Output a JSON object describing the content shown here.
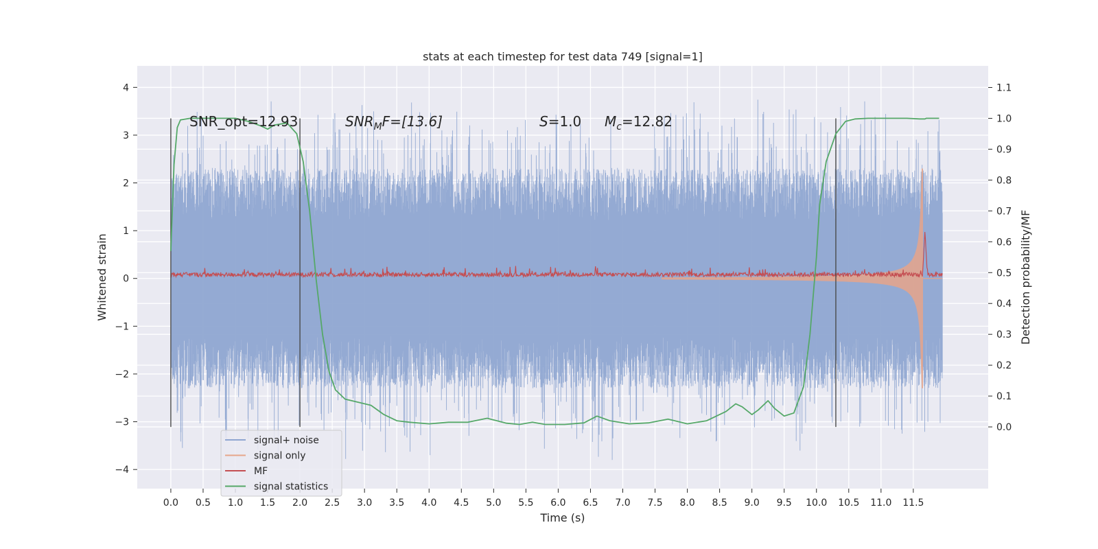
{
  "chart_data": {
    "type": "line",
    "title": "stats at each timestep for test data 749 [signal=1]",
    "xlabel": "Time (s)",
    "ylabel": "Whitened strain",
    "y2label": "Detection probability/MF",
    "xlim": [
      -0.52,
      12.66
    ],
    "ylim": [
      -4.4,
      4.45
    ],
    "y2lim": [
      -0.2,
      1.17
    ],
    "x_ticks": [
      "0.0",
      "0.5",
      "1.0",
      "1.5",
      "2.0",
      "2.5",
      "3.0",
      "3.5",
      "4.0",
      "4.5",
      "5.0",
      "5.5",
      "6.0",
      "6.5",
      "7.0",
      "7.5",
      "8.0",
      "8.5",
      "9.0",
      "9.5",
      "10.0",
      "10.5",
      "11.0",
      "11.5"
    ],
    "y_ticks": [
      "4",
      "3",
      "2",
      "1",
      "0",
      "−1",
      "−2",
      "−3",
      "−4"
    ],
    "y2_ticks": [
      "1.1",
      "1.0",
      "0.9",
      "0.8",
      "0.7",
      "0.6",
      "0.5",
      "0.4",
      "0.3",
      "0.2",
      "0.1",
      "0.0"
    ],
    "grid": true,
    "legend_position": "lower-left",
    "annotations": {
      "snr_opt": "SNR_opt=12.93",
      "snr_mf_name": "SNR",
      "snr_mf_sub": "M",
      "snr_mf_rest": "F=[13.6]",
      "s_name": "S",
      "s_rest": "=1.0",
      "mc_name": "M",
      "mc_sub": "c",
      "mc_rest": "=12.82"
    },
    "vlines_x": [
      0.0,
      2.0,
      10.3
    ],
    "series": [
      {
        "name": "signal+ noise",
        "color": "#8fa6d1",
        "axis": "left",
        "description_range": [
          -3.8,
          4.1
        ]
      },
      {
        "name": "signal only",
        "color": "#e6a58a",
        "axis": "left",
        "peak_time": 11.65,
        "peak_amplitude": 2.3
      },
      {
        "name": "MF",
        "color": "#c44e52",
        "axis": "left",
        "level": 0.08,
        "peak_time": 11.68,
        "peak_value": 1.0
      },
      {
        "name": "signal statistics",
        "color": "#55a868",
        "axis": "right",
        "x": [
          0.0,
          0.05,
          0.1,
          0.15,
          0.3,
          0.6,
          1.0,
          1.2,
          1.4,
          1.5,
          1.6,
          1.8,
          1.95,
          2.05,
          2.15,
          2.25,
          2.35,
          2.45,
          2.55,
          2.7,
          2.9,
          3.1,
          3.3,
          3.5,
          3.7,
          4.0,
          4.3,
          4.6,
          4.9,
          5.2,
          5.4,
          5.6,
          5.8,
          6.1,
          6.4,
          6.6,
          6.8,
          7.1,
          7.4,
          7.7,
          8.0,
          8.3,
          8.6,
          8.75,
          8.85,
          9.0,
          9.1,
          9.25,
          9.35,
          9.5,
          9.65,
          9.8,
          9.9,
          10.0,
          10.05,
          10.15,
          10.3,
          10.45,
          10.6,
          10.8,
          11.0,
          11.4,
          11.6,
          11.68,
          11.7,
          11.9
        ],
        "y": [
          0.57,
          0.85,
          0.97,
          0.995,
          1.0,
          1.0,
          1.0,
          0.99,
          0.975,
          0.965,
          0.978,
          0.985,
          0.95,
          0.86,
          0.7,
          0.48,
          0.3,
          0.18,
          0.12,
          0.09,
          0.08,
          0.07,
          0.04,
          0.02,
          0.015,
          0.01,
          0.015,
          0.015,
          0.028,
          0.012,
          0.008,
          0.015,
          0.008,
          0.008,
          0.013,
          0.035,
          0.02,
          0.01,
          0.013,
          0.025,
          0.01,
          0.02,
          0.05,
          0.075,
          0.065,
          0.04,
          0.055,
          0.085,
          0.06,
          0.035,
          0.045,
          0.13,
          0.3,
          0.55,
          0.72,
          0.86,
          0.95,
          0.99,
          0.998,
          1.0,
          1.0,
          1.0,
          0.998,
          0.998,
          1.0,
          1.0
        ]
      }
    ]
  }
}
